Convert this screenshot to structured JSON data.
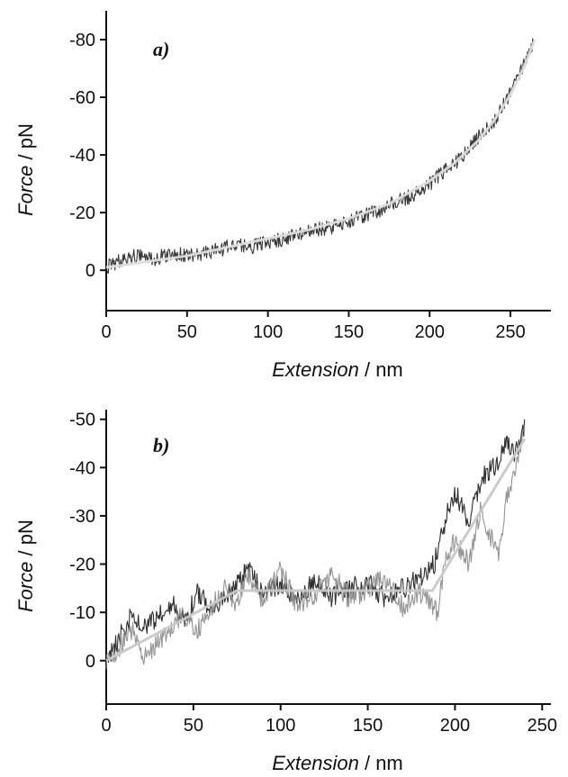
{
  "chart_data": [
    {
      "type": "line",
      "panel_label": "a)",
      "xlabel": {
        "italic": "Extension",
        "rest": " / nm"
      },
      "ylabel": {
        "italic": "Force",
        "rest": " / pN"
      },
      "xlim": [
        0,
        275
      ],
      "ylim": [
        14,
        -90
      ],
      "xticks": [
        0,
        50,
        100,
        150,
        200,
        250
      ],
      "xtick_labels": [
        "0",
        "50",
        "100",
        "150",
        "200",
        "250"
      ],
      "yticks": [
        0,
        -20,
        -40,
        -60,
        -80
      ],
      "ytick_labels": [
        "0",
        "-20",
        "-40",
        "-60",
        "-80"
      ],
      "series": [
        {
          "role": "measured trace",
          "color": "#222222",
          "x": [
            0,
            10,
            20,
            30,
            40,
            50,
            60,
            70,
            80,
            90,
            100,
            110,
            120,
            130,
            140,
            150,
            160,
            170,
            180,
            190,
            200,
            210,
            220,
            230,
            240,
            250,
            260,
            265
          ],
          "y": [
            -1,
            -4,
            -5,
            -4,
            -6,
            -5,
            -6,
            -7,
            -9,
            -8,
            -10,
            -11,
            -13,
            -14,
            -15,
            -17,
            -19,
            -21,
            -24,
            -26,
            -30,
            -35,
            -39,
            -46,
            -52,
            -61,
            -73,
            -80
          ]
        },
        {
          "role": "fit",
          "color": "#dcdcdc",
          "x": [
            0,
            25,
            50,
            75,
            100,
            125,
            150,
            175,
            200,
            215,
            230,
            240,
            250,
            258,
            265
          ],
          "y": [
            -1,
            -3,
            -5,
            -8,
            -11,
            -14,
            -18,
            -23,
            -31,
            -37,
            -45,
            -52,
            -61,
            -70,
            -80
          ]
        }
      ]
    },
    {
      "type": "line",
      "panel_label": "b)",
      "xlabel": {
        "italic": "Extension",
        "rest": " / nm"
      },
      "ylabel": {
        "italic": "Force",
        "rest": " / pN"
      },
      "xlim": [
        0,
        255
      ],
      "ylim": [
        9,
        -52
      ],
      "xticks": [
        0,
        50,
        100,
        150,
        200,
        250
      ],
      "xtick_labels": [
        "0",
        "50",
        "100",
        "150",
        "200",
        "250"
      ],
      "yticks": [
        0,
        -10,
        -20,
        -30,
        -40,
        -50
      ],
      "ytick_labels": [
        "0",
        "-10",
        "-20",
        "-30",
        "-40",
        "-50"
      ],
      "series": [
        {
          "role": "measured trace 1",
          "color": "#1a1a1a",
          "x": [
            0,
            8,
            15,
            22,
            30,
            38,
            45,
            52,
            60,
            68,
            75,
            82,
            90,
            100,
            110,
            120,
            130,
            140,
            150,
            160,
            170,
            180,
            188,
            195,
            200,
            208,
            215,
            222,
            230,
            235,
            240
          ],
          "y": [
            0,
            -5,
            -10,
            -7,
            -9,
            -12,
            -8,
            -14,
            -11,
            -13,
            -16,
            -19,
            -14,
            -16,
            -12,
            -17,
            -13,
            -15,
            -16,
            -13,
            -15,
            -17,
            -20,
            -30,
            -35,
            -28,
            -38,
            -40,
            -45,
            -43,
            -48
          ]
        },
        {
          "role": "measured trace 2",
          "color": "#8a8a8a",
          "x": [
            0,
            8,
            15,
            22,
            30,
            38,
            45,
            52,
            60,
            68,
            75,
            82,
            90,
            100,
            110,
            120,
            130,
            140,
            150,
            160,
            170,
            180,
            190,
            195,
            200,
            208,
            215,
            220,
            225,
            230,
            235,
            240
          ],
          "y": [
            0,
            -3,
            -6,
            -1,
            -4,
            -7,
            -10,
            -6,
            -11,
            -15,
            -12,
            -18,
            -12,
            -19,
            -11,
            -14,
            -18,
            -12,
            -15,
            -17,
            -11,
            -14,
            -10,
            -22,
            -25,
            -20,
            -32,
            -26,
            -22,
            -35,
            -40,
            -47
          ]
        },
        {
          "role": "fit",
          "color": "#c8c8c8",
          "x": [
            0,
            75,
            187,
            240
          ],
          "y": [
            0,
            -14.5,
            -14.5,
            -46
          ]
        }
      ]
    }
  ]
}
